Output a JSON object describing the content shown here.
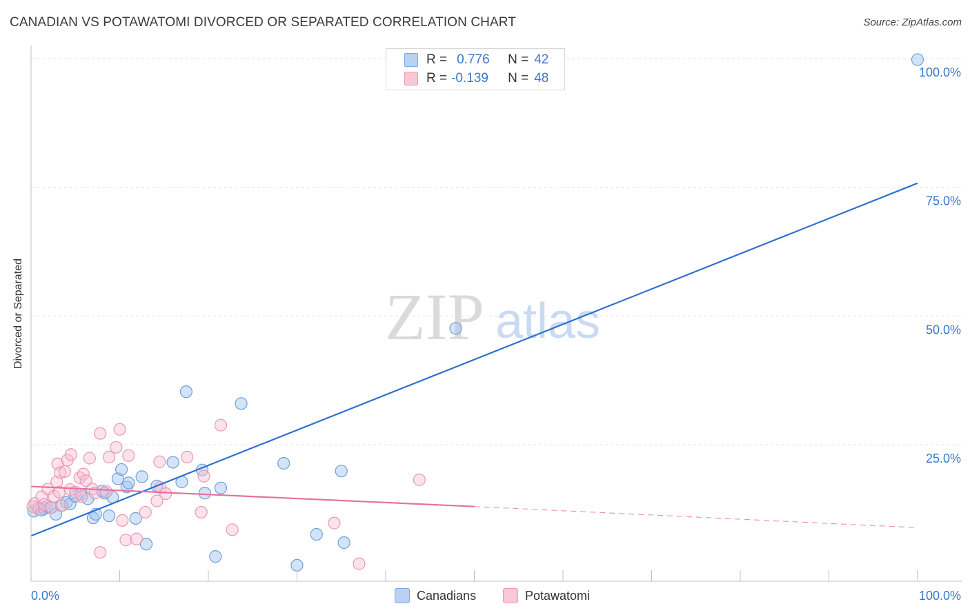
{
  "title": "CANADIAN VS POTAWATOMI DIVORCED OR SEPARATED CORRELATION CHART",
  "source": "Source: ZipAtlas.com",
  "watermark": {
    "zip": "ZIP",
    "atlas": "atlas"
  },
  "legend": {
    "r_label": "R =",
    "n_label": "N =",
    "rows": [
      {
        "name": "Canadians",
        "r": "0.776",
        "n": "42",
        "fill": "#b9d2f3",
        "stroke": "#7ea8df"
      },
      {
        "name": "Potawatomi",
        "r": "-0.139",
        "n": "48",
        "fill": "#f8c8d6",
        "stroke": "#e89ab3"
      }
    ]
  },
  "colors": {
    "blue_line": "#2f6fd0",
    "pink_line": "#e8709a",
    "blue_point_fill": "rgba(160,195,240,0.45)",
    "blue_point_stroke": "#6f9fdc",
    "pink_point_fill": "rgba(248,190,210,0.45)",
    "pink_point_stroke": "#e998b5",
    "tick_label": "#3a78c9",
    "grid": "#e3e3e3"
  },
  "chart_data": {
    "type": "scatter",
    "title": "CANADIAN VS POTAWATOMI DIVORCED OR SEPARATED CORRELATION CHART",
    "xlabel": "",
    "ylabel": "Divorced or Separated",
    "xlim": [
      0,
      100
    ],
    "ylim": [
      -1.5,
      102
    ],
    "x_tick_labels": [
      "0.0%",
      "100.0%"
    ],
    "y_ticks": [
      25,
      50,
      75,
      100
    ],
    "y_tick_labels": [
      "25.0%",
      "50.0%",
      "75.0%",
      "100.0%"
    ],
    "series": [
      {
        "name": "Canadians",
        "r": 0.776,
        "n": 42,
        "trend": {
          "x": [
            0,
            100
          ],
          "y": [
            7.3,
            75.8
          ]
        },
        "points": [
          [
            0.3,
            12.1
          ],
          [
            0.8,
            12.7
          ],
          [
            1.2,
            12.3
          ],
          [
            1.5,
            12.6
          ],
          [
            1.8,
            13.0
          ],
          [
            2.2,
            12.8
          ],
          [
            2.8,
            11.5
          ],
          [
            3.4,
            13.2
          ],
          [
            4.0,
            13.8
          ],
          [
            4.4,
            13.5
          ],
          [
            5.0,
            15.0
          ],
          [
            5.6,
            15.4
          ],
          [
            6.4,
            14.5
          ],
          [
            7.0,
            10.8
          ],
          [
            7.3,
            11.5
          ],
          [
            8.0,
            16.0
          ],
          [
            8.3,
            15.6
          ],
          [
            8.8,
            11.2
          ],
          [
            9.2,
            14.8
          ],
          [
            9.8,
            18.4
          ],
          [
            10.2,
            20.2
          ],
          [
            10.8,
            16.8
          ],
          [
            11.0,
            17.6
          ],
          [
            11.8,
            10.7
          ],
          [
            12.5,
            18.8
          ],
          [
            13.0,
            5.7
          ],
          [
            14.2,
            17.0
          ],
          [
            16.0,
            21.6
          ],
          [
            17.0,
            17.8
          ],
          [
            17.5,
            35.3
          ],
          [
            19.3,
            20.1
          ],
          [
            19.6,
            15.6
          ],
          [
            20.8,
            3.3
          ],
          [
            21.4,
            16.6
          ],
          [
            23.7,
            33.0
          ],
          [
            28.5,
            21.4
          ],
          [
            30.0,
            1.6
          ],
          [
            32.2,
            7.6
          ],
          [
            35.0,
            19.9
          ],
          [
            35.3,
            6.0
          ],
          [
            47.9,
            47.6
          ],
          [
            100,
            99.8
          ]
        ]
      },
      {
        "name": "Potawatomi",
        "r": -0.139,
        "n": 48,
        "trend": {
          "x": [
            0,
            50
          ],
          "y": [
            16.9,
            13.0
          ],
          "dash_to": {
            "x": 100,
            "y": 8.9
          }
        },
        "points": [
          [
            0.4,
            13.6
          ],
          [
            0.9,
            12.4
          ],
          [
            1.2,
            14.9
          ],
          [
            1.5,
            13.4
          ],
          [
            1.9,
            16.4
          ],
          [
            2.3,
            12.8
          ],
          [
            2.6,
            15.0
          ],
          [
            2.9,
            17.8
          ],
          [
            3.2,
            15.8
          ],
          [
            3.5,
            13.2
          ],
          [
            3.0,
            21.3
          ],
          [
            3.3,
            19.6
          ],
          [
            3.8,
            19.8
          ],
          [
            4.1,
            22.0
          ],
          [
            4.4,
            16.3
          ],
          [
            4.5,
            23.1
          ],
          [
            5.0,
            15.8
          ],
          [
            5.5,
            18.6
          ],
          [
            5.7,
            14.9
          ],
          [
            5.9,
            19.3
          ],
          [
            6.2,
            18.0
          ],
          [
            6.6,
            22.4
          ],
          [
            6.9,
            16.4
          ],
          [
            7.2,
            15.6
          ],
          [
            7.8,
            27.2
          ],
          [
            7.8,
            4.1
          ],
          [
            8.5,
            15.9
          ],
          [
            8.8,
            22.6
          ],
          [
            9.6,
            24.5
          ],
          [
            10.0,
            28.0
          ],
          [
            10.3,
            10.3
          ],
          [
            10.7,
            6.5
          ],
          [
            11.0,
            22.9
          ],
          [
            11.9,
            6.7
          ],
          [
            12.9,
            11.9
          ],
          [
            14.2,
            14.1
          ],
          [
            14.5,
            21.7
          ],
          [
            14.6,
            16.7
          ],
          [
            15.2,
            15.5
          ],
          [
            17.6,
            22.6
          ],
          [
            19.2,
            11.9
          ],
          [
            19.5,
            18.9
          ],
          [
            21.4,
            28.8
          ],
          [
            22.7,
            8.5
          ],
          [
            34.2,
            9.8
          ],
          [
            37.0,
            1.9
          ],
          [
            43.8,
            18.2
          ],
          [
            0.2,
            13.0
          ]
        ]
      }
    ]
  }
}
